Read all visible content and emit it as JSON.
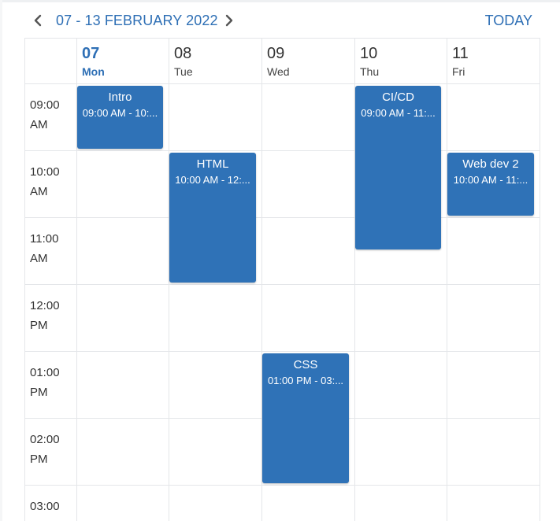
{
  "toolbar": {
    "prev_icon": "chevron-left-icon",
    "range_label": "07 - 13 FEBRUARY 2022",
    "next_icon": "chevron-right-icon",
    "today_label": "TODAY"
  },
  "days": [
    {
      "num": "07",
      "name": "Mon",
      "is_today": true
    },
    {
      "num": "08",
      "name": "Tue",
      "is_today": false
    },
    {
      "num": "09",
      "name": "Wed",
      "is_today": false
    },
    {
      "num": "10",
      "name": "Thu",
      "is_today": false
    },
    {
      "num": "11",
      "name": "Fri",
      "is_today": false
    }
  ],
  "time_slots": [
    {
      "line1": "09:00",
      "line2": "AM"
    },
    {
      "line1": "10:00",
      "line2": "AM"
    },
    {
      "line1": "11:00",
      "line2": "AM"
    },
    {
      "line1": "12:00",
      "line2": "PM"
    },
    {
      "line1": "01:00",
      "line2": "PM"
    },
    {
      "line1": "02:00",
      "line2": "PM"
    },
    {
      "line1": "03:00",
      "line2": ""
    }
  ],
  "events": [
    {
      "title": "Intro",
      "time": "09:00 AM - 10:...",
      "day_index": 0,
      "start_hour": 9,
      "end_hour": 10
    },
    {
      "title": "HTML",
      "time": "10:00 AM - 12:...",
      "day_index": 1,
      "start_hour": 10,
      "end_hour": 12
    },
    {
      "title": "CSS",
      "time": "01:00 PM - 03:...",
      "day_index": 2,
      "start_hour": 13,
      "end_hour": 15
    },
    {
      "title": "CI/CD",
      "time": "09:00 AM - 11:...",
      "day_index": 3,
      "start_hour": 9,
      "end_hour": 11.5
    },
    {
      "title": "Web dev 2",
      "time": "10:00 AM - 11:...",
      "day_index": 4,
      "start_hour": 10,
      "end_hour": 11
    }
  ],
  "colors": {
    "accent": "#2e6fb5",
    "event_bg": "#2f72b7",
    "grid_line": "#e4e6e9"
  }
}
